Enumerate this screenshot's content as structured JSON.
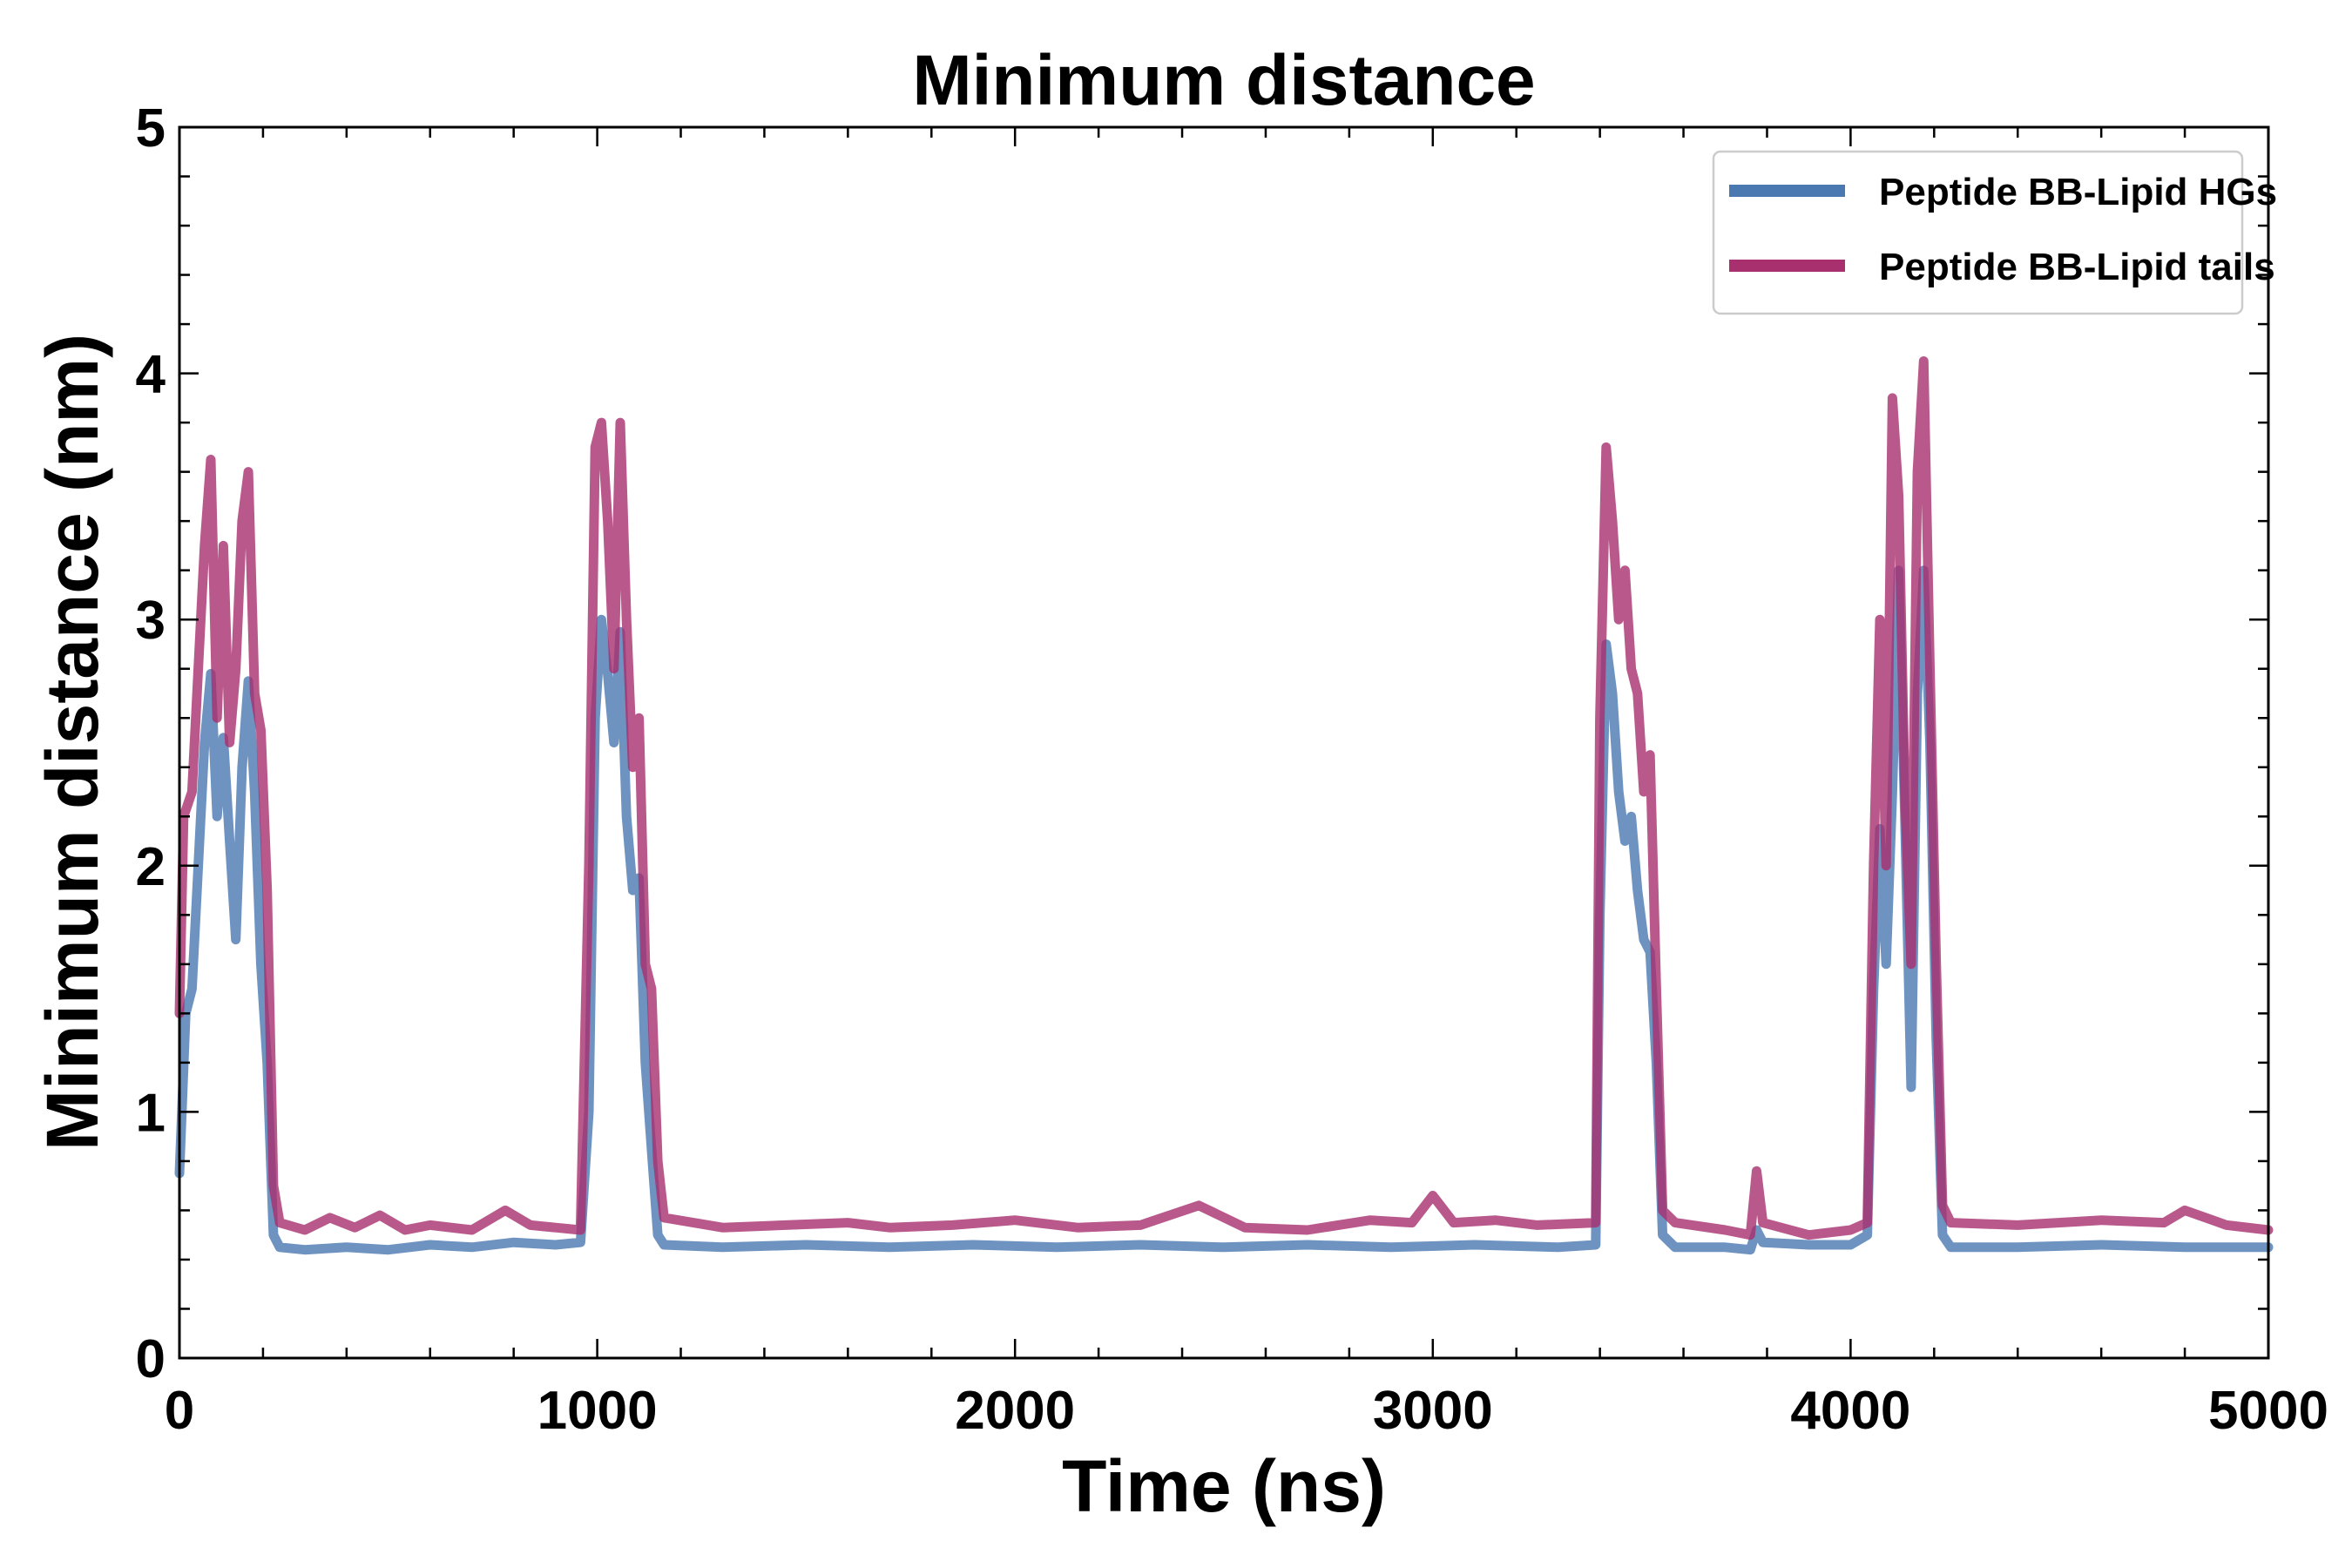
{
  "chart_data": {
    "type": "line",
    "title": "Minimum distance",
    "xlabel": "Time (ns)",
    "ylabel": "Minimum distance (nm)",
    "xlim": [
      0,
      5000
    ],
    "ylim": [
      0,
      5
    ],
    "x_ticks": [
      "0",
      "1000",
      "2000",
      "3000",
      "4000",
      "5000"
    ],
    "y_ticks": [
      "0",
      "1",
      "2",
      "3",
      "4",
      "5"
    ],
    "grid": false,
    "legend_position": "top-right",
    "series": [
      {
        "name": "Peptide BB-Lipid HGs",
        "color": "#4a78b0",
        "points": [
          [
            0,
            0.75
          ],
          [
            15,
            1.4
          ],
          [
            30,
            1.5
          ],
          [
            45,
            2.0
          ],
          [
            60,
            2.5
          ],
          [
            75,
            2.78
          ],
          [
            90,
            2.2
          ],
          [
            105,
            2.52
          ],
          [
            120,
            2.1
          ],
          [
            135,
            1.7
          ],
          [
            150,
            2.4
          ],
          [
            165,
            2.75
          ],
          [
            180,
            2.3
          ],
          [
            195,
            1.6
          ],
          [
            210,
            1.2
          ],
          [
            225,
            0.5
          ],
          [
            240,
            0.45
          ],
          [
            300,
            0.44
          ],
          [
            400,
            0.45
          ],
          [
            500,
            0.44
          ],
          [
            600,
            0.46
          ],
          [
            700,
            0.45
          ],
          [
            800,
            0.47
          ],
          [
            900,
            0.46
          ],
          [
            960,
            0.47
          ],
          [
            980,
            1.0
          ],
          [
            995,
            2.6
          ],
          [
            1010,
            3.0
          ],
          [
            1025,
            2.78
          ],
          [
            1040,
            2.5
          ],
          [
            1055,
            2.95
          ],
          [
            1070,
            2.2
          ],
          [
            1085,
            1.9
          ],
          [
            1100,
            1.95
          ],
          [
            1115,
            1.2
          ],
          [
            1130,
            0.85
          ],
          [
            1145,
            0.5
          ],
          [
            1160,
            0.46
          ],
          [
            1300,
            0.45
          ],
          [
            1500,
            0.46
          ],
          [
            1700,
            0.45
          ],
          [
            1900,
            0.46
          ],
          [
            2100,
            0.45
          ],
          [
            2300,
            0.46
          ],
          [
            2500,
            0.45
          ],
          [
            2700,
            0.46
          ],
          [
            2900,
            0.45
          ],
          [
            3100,
            0.46
          ],
          [
            3300,
            0.45
          ],
          [
            3390,
            0.46
          ],
          [
            3400,
            1.8
          ],
          [
            3415,
            2.9
          ],
          [
            3430,
            2.7
          ],
          [
            3445,
            2.3
          ],
          [
            3460,
            2.1
          ],
          [
            3475,
            2.2
          ],
          [
            3490,
            1.9
          ],
          [
            3505,
            1.7
          ],
          [
            3520,
            1.65
          ],
          [
            3535,
            1.2
          ],
          [
            3550,
            0.5
          ],
          [
            3580,
            0.45
          ],
          [
            3700,
            0.45
          ],
          [
            3760,
            0.44
          ],
          [
            3775,
            0.52
          ],
          [
            3790,
            0.47
          ],
          [
            3900,
            0.46
          ],
          [
            4000,
            0.46
          ],
          [
            4040,
            0.5
          ],
          [
            4055,
            1.5
          ],
          [
            4070,
            2.15
          ],
          [
            4085,
            1.6
          ],
          [
            4100,
            2.3
          ],
          [
            4115,
            3.2
          ],
          [
            4130,
            2.2
          ],
          [
            4145,
            1.1
          ],
          [
            4160,
            2.7
          ],
          [
            4175,
            3.2
          ],
          [
            4190,
            2.5
          ],
          [
            4205,
            1.3
          ],
          [
            4220,
            0.5
          ],
          [
            4240,
            0.45
          ],
          [
            4400,
            0.45
          ],
          [
            4600,
            0.46
          ],
          [
            4800,
            0.45
          ],
          [
            5000,
            0.45
          ]
        ]
      },
      {
        "name": "Peptide BB-Lipid tails",
        "color": "#a8306e",
        "points": [
          [
            0,
            1.4
          ],
          [
            10,
            2.2
          ],
          [
            30,
            2.3
          ],
          [
            45,
            2.8
          ],
          [
            60,
            3.3
          ],
          [
            75,
            3.65
          ],
          [
            90,
            2.6
          ],
          [
            105,
            3.3
          ],
          [
            120,
            2.5
          ],
          [
            135,
            2.8
          ],
          [
            150,
            3.4
          ],
          [
            165,
            3.6
          ],
          [
            180,
            2.7
          ],
          [
            195,
            2.55
          ],
          [
            210,
            1.9
          ],
          [
            225,
            0.7
          ],
          [
            240,
            0.55
          ],
          [
            300,
            0.52
          ],
          [
            360,
            0.57
          ],
          [
            420,
            0.53
          ],
          [
            480,
            0.58
          ],
          [
            540,
            0.52
          ],
          [
            600,
            0.54
          ],
          [
            700,
            0.52
          ],
          [
            780,
            0.6
          ],
          [
            840,
            0.54
          ],
          [
            900,
            0.53
          ],
          [
            960,
            0.52
          ],
          [
            980,
            2.0
          ],
          [
            995,
            3.7
          ],
          [
            1010,
            3.8
          ],
          [
            1025,
            3.4
          ],
          [
            1040,
            2.8
          ],
          [
            1055,
            3.8
          ],
          [
            1070,
            3.0
          ],
          [
            1085,
            2.4
          ],
          [
            1100,
            2.6
          ],
          [
            1115,
            1.6
          ],
          [
            1130,
            1.5
          ],
          [
            1145,
            0.8
          ],
          [
            1160,
            0.57
          ],
          [
            1300,
            0.53
          ],
          [
            1450,
            0.54
          ],
          [
            1600,
            0.55
          ],
          [
            1700,
            0.53
          ],
          [
            1850,
            0.54
          ],
          [
            2000,
            0.56
          ],
          [
            2150,
            0.53
          ],
          [
            2300,
            0.54
          ],
          [
            2440,
            0.62
          ],
          [
            2550,
            0.53
          ],
          [
            2700,
            0.52
          ],
          [
            2850,
            0.56
          ],
          [
            2950,
            0.55
          ],
          [
            3000,
            0.66
          ],
          [
            3050,
            0.55
          ],
          [
            3150,
            0.56
          ],
          [
            3250,
            0.54
          ],
          [
            3390,
            0.55
          ],
          [
            3400,
            2.6
          ],
          [
            3415,
            3.7
          ],
          [
            3430,
            3.4
          ],
          [
            3445,
            3.0
          ],
          [
            3460,
            3.2
          ],
          [
            3475,
            2.8
          ],
          [
            3490,
            2.7
          ],
          [
            3505,
            2.3
          ],
          [
            3520,
            2.45
          ],
          [
            3535,
            1.5
          ],
          [
            3550,
            0.6
          ],
          [
            3580,
            0.55
          ],
          [
            3700,
            0.52
          ],
          [
            3760,
            0.5
          ],
          [
            3775,
            0.76
          ],
          [
            3790,
            0.55
          ],
          [
            3900,
            0.5
          ],
          [
            4000,
            0.52
          ],
          [
            4040,
            0.55
          ],
          [
            4055,
            2.0
          ],
          [
            4070,
            3.0
          ],
          [
            4085,
            2.0
          ],
          [
            4100,
            3.9
          ],
          [
            4115,
            3.5
          ],
          [
            4130,
            2.3
          ],
          [
            4145,
            1.6
          ],
          [
            4160,
            3.6
          ],
          [
            4175,
            4.05
          ],
          [
            4190,
            2.8
          ],
          [
            4205,
            1.6
          ],
          [
            4220,
            0.62
          ],
          [
            4240,
            0.55
          ],
          [
            4400,
            0.54
          ],
          [
            4600,
            0.56
          ],
          [
            4750,
            0.55
          ],
          [
            4800,
            0.6
          ],
          [
            4900,
            0.54
          ],
          [
            5000,
            0.52
          ]
        ]
      }
    ]
  }
}
